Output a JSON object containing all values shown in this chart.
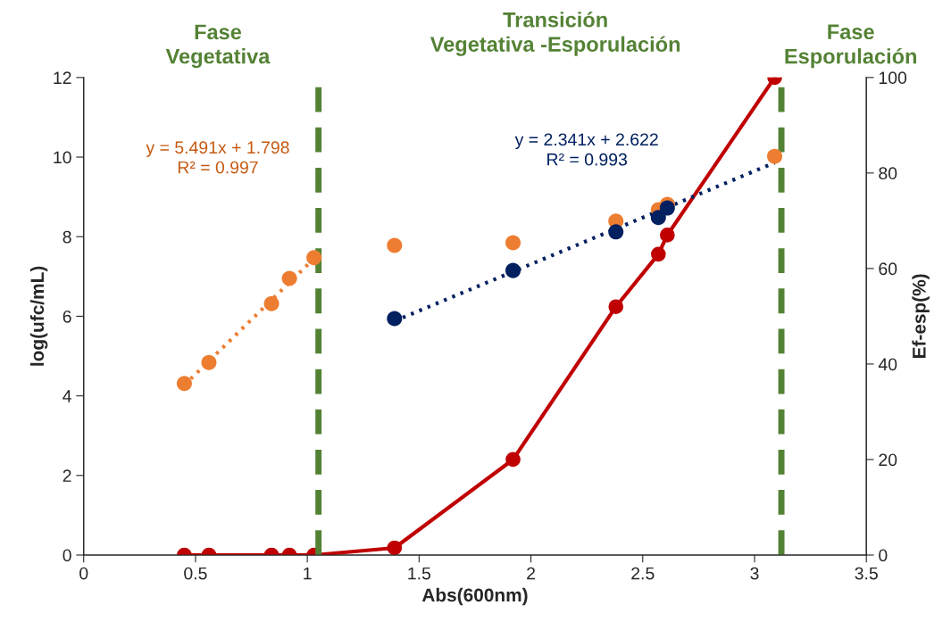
{
  "chart_data": {
    "type": "scatter",
    "xlabel": "Abs(600nm)",
    "ylabel": "log(ufc/mL)",
    "y2label": "Ef-esp(%)",
    "series": [
      {
        "color": "#ed7d31",
        "x": [
          0.45,
          0.56,
          0.84,
          0.92,
          1.03,
          1.39,
          1.92,
          2.38,
          2.57,
          2.61,
          3.09
        ],
        "values": [
          4.31,
          4.84,
          6.32,
          6.95,
          7.47,
          7.78,
          7.85,
          8.39,
          8.68,
          8.81,
          10.02
        ]
      },
      {
        "color": "#002060",
        "x": [
          1.39,
          1.92,
          2.38,
          2.57,
          2.61
        ],
        "values": [
          5.94,
          7.15,
          8.12,
          8.48,
          8.72
        ]
      },
      {
        "type": "line",
        "color": "#ed7d31",
        "line_style": "dotted",
        "marker": "none",
        "x": [
          0.45,
          1.03
        ],
        "values": [
          4.27,
          7.45
        ]
      },
      {
        "type": "line",
        "color": "#002060",
        "line_style": "dotted",
        "marker": "none",
        "x": [
          1.39,
          3.09
        ],
        "values": [
          5.88,
          9.86
        ]
      },
      {
        "type": "line",
        "color": "#c00000",
        "line_style": "solid",
        "marker": "circle",
        "axis": "y2",
        "x": [
          0.45,
          0.56,
          0.84,
          0.92,
          1.03,
          1.39,
          1.92,
          2.38,
          2.57,
          2.61,
          3.09
        ],
        "values": [
          0,
          0,
          0,
          0,
          0,
          1.5,
          20,
          52,
          63,
          67,
          100
        ]
      }
    ],
    "xlim": [
      0,
      3.5
    ],
    "xticks": [
      0,
      0.5,
      1,
      1.5,
      2,
      2.5,
      3,
      3.5
    ],
    "ylim": [
      0,
      12
    ],
    "yticks": [
      0,
      2,
      4,
      6,
      8,
      10,
      12
    ],
    "y2lim": [
      0,
      100
    ],
    "y2ticks": [
      0,
      20,
      40,
      60,
      80,
      100
    ],
    "grid": false,
    "legend": false,
    "ref_lines": [
      {
        "axis": "x",
        "value": 1.05,
        "label": "Fase\nVegetativa",
        "color": "#548235",
        "line_style": "dashed"
      },
      {
        "axis": "x",
        "value": 3.12,
        "label": "Fase\nEsporulación",
        "color": "#548235",
        "line_style": "dashed"
      }
    ],
    "annotations": [
      "Transición\nVegetativa -Esporulación",
      "y = 5.491x + 1.798\nR² = 0.997",
      "y = 2.341x + 2.622\nR² = 0.993"
    ]
  }
}
